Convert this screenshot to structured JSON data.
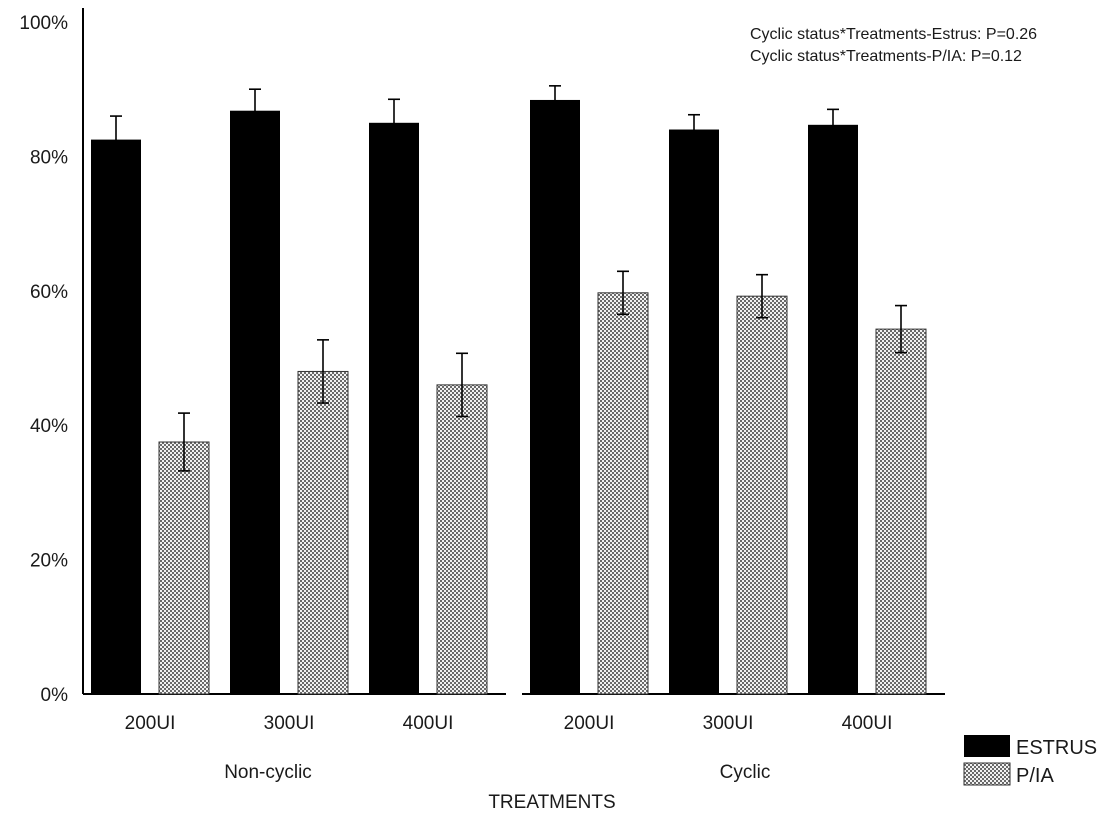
{
  "chart_data": {
    "type": "bar",
    "ylim": [
      0,
      100
    ],
    "y_ticks": [
      "0%",
      "20%",
      "40%",
      "60%",
      "80%",
      "100%"
    ],
    "xlabel": "TREATMENTS",
    "ylabel": "",
    "grid": false,
    "legend_position": "bottom-right",
    "colors": {
      "ESTRUS": "#000000",
      "P/IA": "#c9c9c9"
    },
    "groups": [
      {
        "name": "Non-cyclic",
        "categories": [
          "200UI",
          "300UI",
          "400UI"
        ],
        "series": [
          {
            "name": "ESTRUS",
            "values": [
              82.5,
              86.8,
              85.0
            ],
            "errors": [
              3.5,
              3.2,
              3.5
            ]
          },
          {
            "name": "P/IA",
            "values": [
              37.5,
              48.0,
              46.0
            ],
            "errors": [
              4.3,
              4.7,
              4.7
            ]
          }
        ]
      },
      {
        "name": "Cyclic",
        "categories": [
          "200UI",
          "300UI",
          "400UI"
        ],
        "series": [
          {
            "name": "ESTRUS",
            "values": [
              88.4,
              84.0,
              84.7
            ],
            "errors": [
              2.1,
              2.2,
              2.3
            ]
          },
          {
            "name": "P/IA",
            "values": [
              59.7,
              59.2,
              54.3
            ],
            "errors": [
              3.2,
              3.2,
              3.5
            ]
          }
        ]
      }
    ],
    "annotations": [
      "Cyclic status*Treatments-Estrus: P=0.26",
      "Cyclic status*Treatments-P/IA: P=0.12"
    ]
  }
}
